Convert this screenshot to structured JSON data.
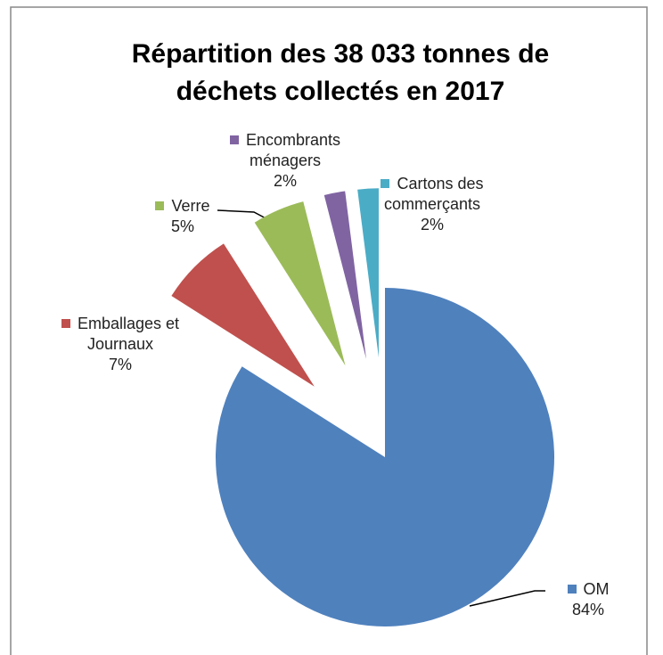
{
  "chart_data": {
    "type": "pie",
    "title": "Répartition des 38 033 tonnes de déchets collectés en 2017",
    "categories": [
      "OM",
      "Emballages et Journaux",
      "Verre",
      "Encombrants ménagers",
      "Cartons des commerçants"
    ],
    "values": [
      84,
      7,
      5,
      2,
      2
    ],
    "value_labels": [
      "84%",
      "7%",
      "5%",
      "2%",
      "2%"
    ],
    "colors": [
      "#4f81bd",
      "#c0504d",
      "#9bbb59",
      "#8064a2",
      "#4bacc6"
    ]
  }
}
